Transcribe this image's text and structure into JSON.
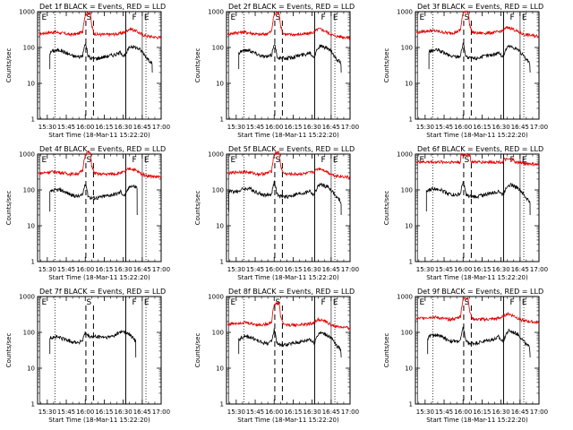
{
  "chart_data": [
    {
      "type": "line",
      "title": "Det 1f BLACK = Events, RED = LLD"
    },
    {
      "type": "line",
      "title": "Det 2f BLACK = Events, RED = LLD"
    },
    {
      "type": "line",
      "title": "Det 3f BLACK = Events, RED = LLD"
    },
    {
      "type": "line",
      "title": "Det 4f BLACK = Events, RED = LLD"
    },
    {
      "type": "line",
      "title": "Det 5f BLACK = Events, RED = LLD"
    },
    {
      "type": "line",
      "title": "Det 6f BLACK = Events, RED = LLD"
    },
    {
      "type": "line",
      "title": "Det 7f BLACK = Events, RED = LLD"
    },
    {
      "type": "line",
      "title": "Det 8f BLACK = Events, RED = LLD"
    },
    {
      "type": "line",
      "title": "Det 9f BLACK = Events, RED = LLD"
    }
  ],
  "shared_axes": {
    "xlabel": "Start Time (18-Mar-11 15:22:20)",
    "ylabel": "Counts/sec",
    "x_tick_labels": [
      "15:30",
      "15:45",
      "16:00",
      "16:15",
      "16:30",
      "16:45",
      "17:00"
    ],
    "x_tick_minutes": [
      30,
      45,
      60,
      75,
      90,
      105,
      120
    ],
    "xlim_minutes_after_15h": [
      22.33,
      120
    ],
    "y_scale": "log",
    "ylim": [
      1,
      1000
    ],
    "y_tick_labels": [
      "1",
      "10",
      "100",
      "1000"
    ],
    "grid": false
  },
  "series_colors": {
    "events": "#000000",
    "lld": "#e00000"
  },
  "markers": {
    "E_minutes": [
      25.5,
      106.5
    ],
    "F_minutes": [
      97
    ],
    "S_minutes": [
      63
    ],
    "dotted_minutes": [
      36,
      108
    ],
    "dashed_minutes": [
      60.5,
      66.5
    ],
    "solid_minutes": [
      92
    ],
    "labels": {
      "E": "E",
      "F": "F",
      "S": "S"
    }
  },
  "series_profiles": {
    "events_base": [
      [
        32,
        70
      ],
      [
        34,
        80
      ],
      [
        36,
        82
      ],
      [
        40,
        85
      ],
      [
        45,
        70
      ],
      [
        50,
        58
      ],
      [
        55,
        55
      ],
      [
        58,
        60
      ],
      [
        59,
        90
      ],
      [
        60,
        130
      ],
      [
        61,
        100
      ],
      [
        62,
        60
      ],
      [
        64,
        50
      ],
      [
        66,
        50
      ],
      [
        70,
        50
      ],
      [
        75,
        55
      ],
      [
        80,
        60
      ],
      [
        85,
        65
      ],
      [
        87,
        70
      ],
      [
        88,
        75
      ],
      [
        90,
        60
      ],
      [
        92,
        58
      ],
      [
        94,
        90
      ],
      [
        96,
        110
      ],
      [
        100,
        100
      ],
      [
        103,
        90
      ],
      [
        106,
        70
      ],
      [
        108,
        55
      ],
      [
        110,
        45
      ],
      [
        112,
        40
      ],
      [
        113,
        30
      ]
    ],
    "lld_base": [
      [
        24,
        240
      ],
      [
        30,
        260
      ],
      [
        36,
        270
      ],
      [
        42,
        250
      ],
      [
        48,
        230
      ],
      [
        54,
        240
      ],
      [
        58,
        280
      ],
      [
        60,
        800
      ],
      [
        62,
        950
      ],
      [
        64,
        900
      ],
      [
        65,
        400
      ],
      [
        67,
        250
      ],
      [
        70,
        230
      ],
      [
        78,
        230
      ],
      [
        86,
        240
      ],
      [
        90,
        260
      ],
      [
        92,
        270
      ],
      [
        94,
        320
      ],
      [
        96,
        330
      ],
      [
        100,
        290
      ],
      [
        104,
        240
      ],
      [
        108,
        210
      ],
      [
        113,
        200
      ],
      [
        118,
        190
      ],
      [
        120,
        185
      ]
    ],
    "det7_events": [
      [
        32,
        70
      ],
      [
        36,
        75
      ],
      [
        40,
        72
      ],
      [
        45,
        62
      ],
      [
        50,
        55
      ],
      [
        55,
        52
      ],
      [
        58,
        60
      ],
      [
        60,
        95
      ],
      [
        62,
        80
      ],
      [
        64,
        75
      ],
      [
        68,
        75
      ],
      [
        72,
        75
      ],
      [
        78,
        72
      ],
      [
        82,
        80
      ],
      [
        86,
        95
      ],
      [
        88,
        100
      ],
      [
        90,
        110
      ],
      [
        92,
        100
      ],
      [
        95,
        85
      ],
      [
        98,
        70
      ],
      [
        100,
        55
      ]
    ]
  },
  "panel_params": [
    {
      "evScale": 1.0,
      "lldScale": 1.0,
      "evStart": 32,
      "evEnd": 113,
      "lldEnd": 120,
      "showLLD": true,
      "flatLLD": false
    },
    {
      "evScale": 1.0,
      "lldScale": 1.0,
      "evStart": 32,
      "evEnd": 113,
      "lldEnd": 120,
      "showLLD": true,
      "flatLLD": false
    },
    {
      "evScale": 1.0,
      "lldScale": 1.1,
      "evStart": 33,
      "evEnd": 113,
      "lldEnd": 120,
      "showLLD": true,
      "flatLLD": false
    },
    {
      "evScale": 1.2,
      "lldScale": 1.2,
      "evStart": 32,
      "evEnd": 101,
      "lldEnd": 120,
      "showLLD": true,
      "flatLLD": false
    },
    {
      "evScale": 1.3,
      "lldScale": 1.2,
      "evStart": 24,
      "evEnd": 113,
      "lldEnd": 120,
      "showLLD": true,
      "flatLLD": false
    },
    {
      "evScale": 1.3,
      "lldScale": 2.3,
      "evStart": 31,
      "evEnd": 113,
      "lldEnd": 120,
      "showLLD": true,
      "flatLLD": true
    },
    {
      "evScale": 1.0,
      "lldScale": 1.0,
      "evStart": 32,
      "evEnd": 100,
      "lldEnd": 120,
      "showLLD": false,
      "flatLLD": false
    },
    {
      "evScale": 0.9,
      "lldScale": 0.7,
      "evStart": 32,
      "evEnd": 113,
      "lldEnd": 120,
      "showLLD": true,
      "flatLLD": false
    },
    {
      "evScale": 1.0,
      "lldScale": 1.0,
      "evStart": 32,
      "evEnd": 113,
      "lldEnd": 120,
      "showLLD": true,
      "flatLLD": false
    }
  ]
}
